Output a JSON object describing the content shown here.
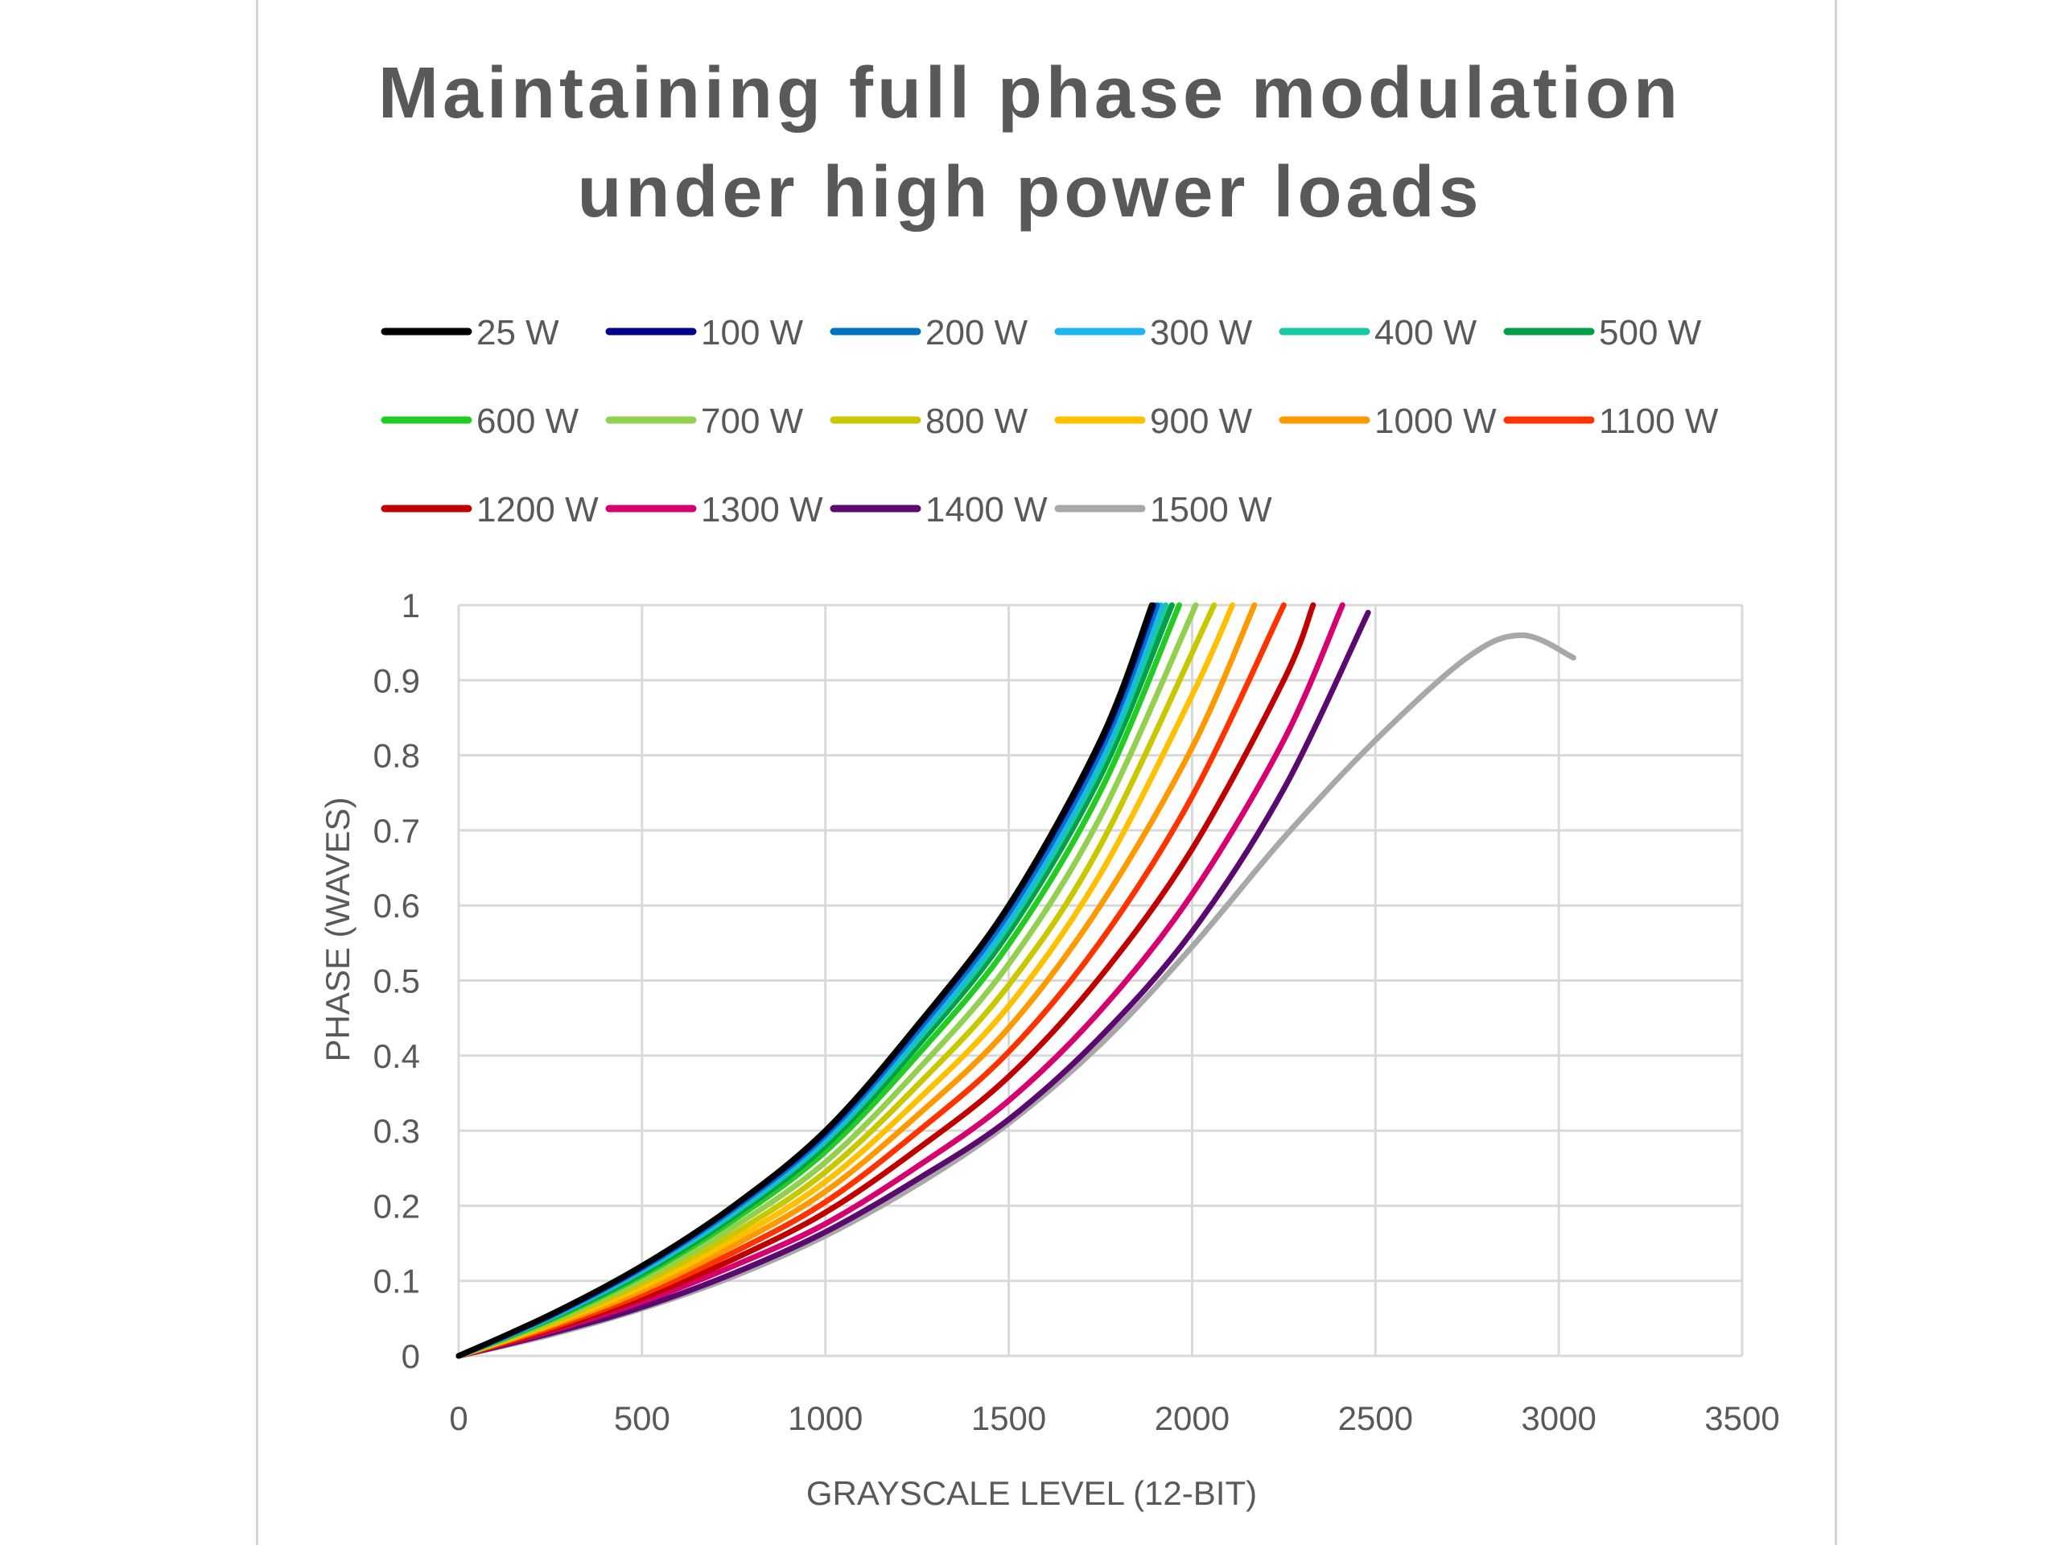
{
  "chart_data": {
    "type": "line",
    "title_lines": [
      "Maintaining full phase modulation",
      "under high power loads"
    ],
    "xlabel": "GRAYSCALE LEVEL (12-BIT)",
    "ylabel": "PHASE (WAVES)",
    "xlim": [
      0,
      3500
    ],
    "ylim": [
      0,
      1
    ],
    "xticks": [
      0,
      500,
      1000,
      1500,
      2000,
      2500,
      3000,
      3500
    ],
    "yticks": [
      0,
      0.1,
      0.2,
      0.3,
      0.4,
      0.5,
      0.6,
      0.7,
      0.8,
      0.9,
      1
    ],
    "ytick_labels": [
      "0",
      "0.1",
      "0.2",
      "0.3",
      "0.4",
      "0.5",
      "0.6",
      "0.7",
      "0.8",
      "0.9",
      "1"
    ],
    "grid": true,
    "legend_position": "top",
    "series": [
      {
        "name": "25 W",
        "color": "#000000",
        "x": [
          0,
          250,
          500,
          750,
          1000,
          1250,
          1500,
          1750,
          1890
        ],
        "y": [
          0,
          0.055,
          0.12,
          0.2,
          0.3,
          0.44,
          0.6,
          0.82,
          1.0
        ]
      },
      {
        "name": "100 W",
        "color": "#00008B",
        "x": [
          0,
          250,
          500,
          750,
          1000,
          1250,
          1500,
          1750,
          1895
        ],
        "y": [
          0,
          0.054,
          0.119,
          0.199,
          0.298,
          0.438,
          0.598,
          0.815,
          1.0
        ]
      },
      {
        "name": "200 W",
        "color": "#0070C0",
        "x": [
          0,
          250,
          500,
          750,
          1000,
          1250,
          1500,
          1750,
          1905
        ],
        "y": [
          0,
          0.053,
          0.117,
          0.196,
          0.294,
          0.432,
          0.59,
          0.805,
          1.0
        ]
      },
      {
        "name": "300 W",
        "color": "#1EB4F0",
        "x": [
          0,
          250,
          500,
          750,
          1000,
          1250,
          1500,
          1750,
          1915
        ],
        "y": [
          0,
          0.052,
          0.115,
          0.193,
          0.29,
          0.426,
          0.582,
          0.795,
          1.0
        ]
      },
      {
        "name": "400 W",
        "color": "#17C9A5",
        "x": [
          0,
          250,
          500,
          750,
          1000,
          1250,
          1500,
          1750,
          1928
        ],
        "y": [
          0,
          0.051,
          0.113,
          0.19,
          0.286,
          0.42,
          0.574,
          0.785,
          1.0
        ]
      },
      {
        "name": "500 W",
        "color": "#00A046",
        "x": [
          0,
          250,
          500,
          750,
          1000,
          1250,
          1500,
          1750,
          1945
        ],
        "y": [
          0,
          0.05,
          0.11,
          0.186,
          0.28,
          0.412,
          0.564,
          0.772,
          1.0
        ]
      },
      {
        "name": "600 W",
        "color": "#22CC22",
        "x": [
          0,
          250,
          500,
          750,
          1000,
          1250,
          1500,
          1750,
          1965
        ],
        "y": [
          0,
          0.048,
          0.107,
          0.181,
          0.272,
          0.4,
          0.548,
          0.752,
          1.0
        ]
      },
      {
        "name": "700 W",
        "color": "#92D050",
        "x": [
          0,
          250,
          500,
          750,
          1000,
          1250,
          1500,
          1750,
          2010
        ],
        "y": [
          0,
          0.046,
          0.102,
          0.172,
          0.258,
          0.38,
          0.522,
          0.718,
          1.0
        ]
      },
      {
        "name": "800 W",
        "color": "#C8C800",
        "x": [
          0,
          250,
          500,
          750,
          1000,
          1250,
          1500,
          1750,
          2060
        ],
        "y": [
          0,
          0.044,
          0.097,
          0.163,
          0.245,
          0.36,
          0.494,
          0.68,
          1.0
        ]
      },
      {
        "name": "900 W",
        "color": "#FFC000",
        "x": [
          0,
          250,
          500,
          750,
          1000,
          1250,
          1500,
          1750,
          2000,
          2110
        ],
        "y": [
          0,
          0.042,
          0.092,
          0.155,
          0.232,
          0.34,
          0.466,
          0.642,
          0.88,
          1.0
        ]
      },
      {
        "name": "1000 W",
        "color": "#FF9900",
        "x": [
          0,
          250,
          500,
          750,
          1000,
          1250,
          1500,
          1750,
          2000,
          2170
        ],
        "y": [
          0,
          0.04,
          0.087,
          0.147,
          0.219,
          0.32,
          0.437,
          0.6,
          0.81,
          1.0
        ]
      },
      {
        "name": "1100 W",
        "color": "#FF3300",
        "x": [
          0,
          250,
          500,
          750,
          1000,
          1250,
          1500,
          1750,
          2000,
          2250
        ],
        "y": [
          0,
          0.037,
          0.082,
          0.138,
          0.205,
          0.298,
          0.405,
          0.552,
          0.745,
          1.0
        ]
      },
      {
        "name": "1200 W",
        "color": "#C00000",
        "x": [
          0,
          250,
          500,
          750,
          1000,
          1250,
          1500,
          1750,
          2000,
          2250,
          2330
        ],
        "y": [
          0,
          0.035,
          0.077,
          0.129,
          0.191,
          0.275,
          0.372,
          0.505,
          0.675,
          0.9,
          1.0
        ]
      },
      {
        "name": "1300 W",
        "color": "#D6006F",
        "x": [
          0,
          250,
          500,
          750,
          1000,
          1250,
          1500,
          1750,
          2000,
          2250,
          2410
        ],
        "y": [
          0,
          0.033,
          0.072,
          0.12,
          0.176,
          0.252,
          0.34,
          0.46,
          0.615,
          0.82,
          1.0
        ]
      },
      {
        "name": "1400 W",
        "color": "#5A0A6E",
        "x": [
          0,
          250,
          500,
          750,
          1000,
          1250,
          1500,
          1750,
          2000,
          2250,
          2480
        ],
        "y": [
          0,
          0.03,
          0.065,
          0.11,
          0.165,
          0.235,
          0.315,
          0.425,
          0.565,
          0.755,
          0.99
        ]
      },
      {
        "name": "1500 W",
        "color": "#A8A8A8",
        "x": [
          0,
          250,
          500,
          750,
          1000,
          1250,
          1500,
          1750,
          2000,
          2250,
          2500,
          2750,
          2900,
          3040
        ],
        "y": [
          0,
          0.028,
          0.063,
          0.106,
          0.16,
          0.228,
          0.31,
          0.415,
          0.545,
          0.69,
          0.82,
          0.93,
          0.96,
          0.93
        ]
      }
    ]
  }
}
